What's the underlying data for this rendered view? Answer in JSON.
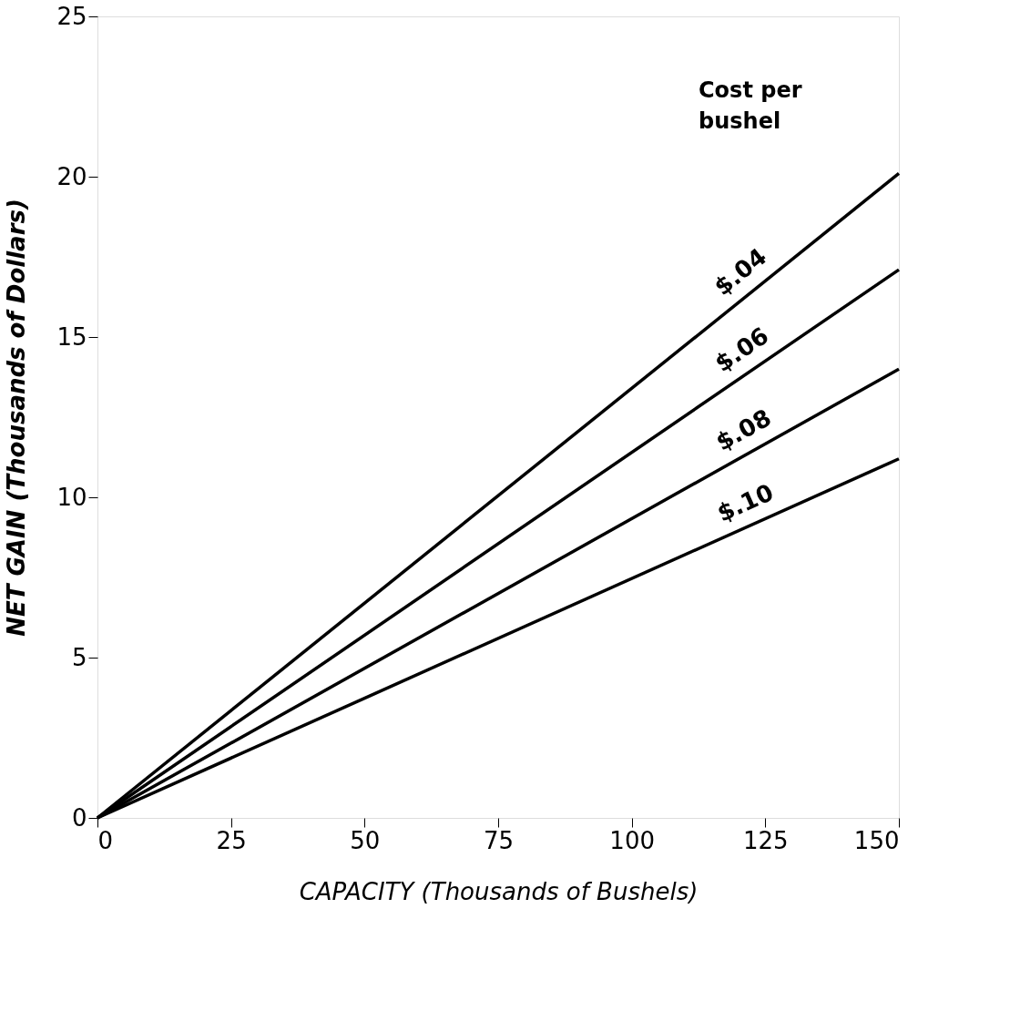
{
  "chart_data": {
    "type": "line",
    "xlabel": "CAPACITY (Thousands of Bushels)",
    "ylabel": "NET GAIN (Thousands of Dollars)",
    "annotations": [
      "Cost per bushel"
    ],
    "xlim": [
      0,
      150
    ],
    "ylim": [
      0,
      25
    ],
    "xticks": [
      0,
      25,
      50,
      75,
      100,
      125,
      150
    ],
    "yticks": [
      0,
      5,
      10,
      15,
      20,
      25
    ],
    "grid": false,
    "legend": false,
    "marker": "none",
    "line_style": "solid",
    "x": [
      0,
      150
    ],
    "series": [
      {
        "name": "$.04",
        "color": "#000000",
        "values": [
          0,
          20.1
        ]
      },
      {
        "name": "$.06",
        "color": "#000000",
        "values": [
          0,
          17.1
        ]
      },
      {
        "name": "$.08",
        "color": "#000000",
        "values": [
          0,
          14.0
        ]
      },
      {
        "name": "$.10",
        "color": "#000000",
        "values": [
          0,
          11.2
        ]
      }
    ]
  }
}
